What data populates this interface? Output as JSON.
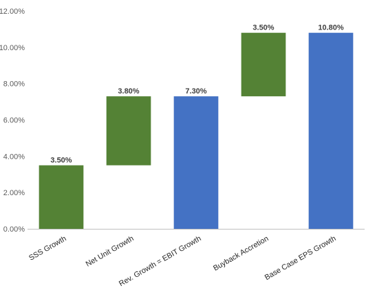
{
  "chart_data": {
    "type": "bar",
    "subtype": "waterfall",
    "title": "",
    "xlabel": "",
    "ylabel": "",
    "ylim": [
      0,
      12
    ],
    "y_ticks": [
      0,
      2,
      4,
      6,
      8,
      10,
      12
    ],
    "y_tick_labels": [
      "0.00%",
      "2.00%",
      "4.00%",
      "6.00%",
      "8.00%",
      "10.00%",
      "12.00%"
    ],
    "grid": false,
    "legend": "none",
    "categories": [
      "SSS Growth",
      "Net Unit Growth",
      "Rev. Growth = EBIT Growth",
      "Buyback Accretion",
      "Base Case EPS Growth"
    ],
    "bars": [
      {
        "start": 0.0,
        "end": 3.5,
        "label": "3.50%",
        "kind": "increment"
      },
      {
        "start": 3.5,
        "end": 7.3,
        "label": "3.80%",
        "kind": "increment"
      },
      {
        "start": 0.0,
        "end": 7.3,
        "label": "7.30%",
        "kind": "total"
      },
      {
        "start": 7.3,
        "end": 10.8,
        "label": "3.50%",
        "kind": "increment"
      },
      {
        "start": 0.0,
        "end": 10.8,
        "label": "10.80%",
        "kind": "total"
      }
    ],
    "colors": {
      "increment": "#548235",
      "total": "#4472c4"
    }
  }
}
